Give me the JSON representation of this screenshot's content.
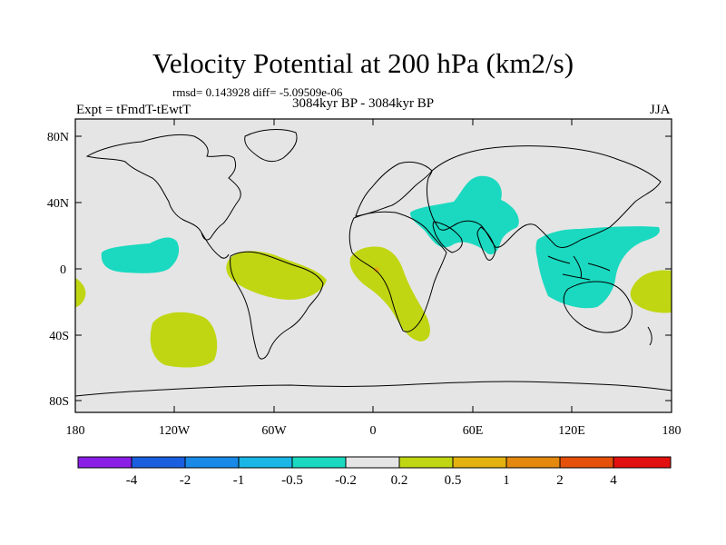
{
  "header": {
    "title": "Velocity Potential at 200 hPa (km2/s)",
    "stats": "rmsd= 0.143928 diff= -5.09509e-06",
    "experiment": "Expt = tFmdT-tEwtT",
    "period": "3084kyr BP - 3084kyr BP",
    "season": "JJA"
  },
  "axes": {
    "lat_labels": [
      "80N",
      "40N",
      "0",
      "40S",
      "80S"
    ],
    "lon_labels": [
      "180",
      "120W",
      "60W",
      "0",
      "60E",
      "120E",
      "180"
    ]
  },
  "colorbar": {
    "colors": [
      "#8a1ee6",
      "#1a5fe0",
      "#1a8ae8",
      "#19b6e6",
      "#1ad9c0",
      "#e5e5e5",
      "#c0d613",
      "#e3b20f",
      "#e5880e",
      "#e5500b",
      "#e31010"
    ],
    "labels": [
      "-4",
      "-2",
      "-1",
      "-0.5",
      "-0.2",
      "0.2",
      "0.5",
      "1",
      "2",
      "4"
    ]
  },
  "legend_colors": {
    "ocean": "#e5e5e5",
    "negative": "#1ad9c0",
    "positive": "#c0d613",
    "spot": "#e3b20f"
  }
}
